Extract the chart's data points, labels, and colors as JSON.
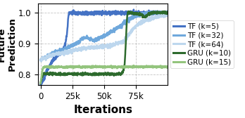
{
  "title": "",
  "xlabel": "Iterations",
  "ylabel": "Future\nPrediction",
  "xlim": [
    -2000,
    100000
  ],
  "ylim": [
    0.765,
    1.03
  ],
  "yticks": [
    0.8,
    0.9,
    1.0
  ],
  "xticks": [
    0,
    25000,
    50000,
    75000
  ],
  "xticklabels": [
    "0",
    "25k",
    "50k",
    "75k"
  ],
  "series": [
    {
      "label": "TF (k=5)",
      "color": "#4472C4",
      "linewidth": 1.8,
      "points": [
        [
          0,
          0.768
        ],
        [
          1000,
          0.772
        ],
        [
          2000,
          0.778
        ],
        [
          3000,
          0.79
        ],
        [
          4000,
          0.8
        ],
        [
          5000,
          0.81
        ],
        [
          6000,
          0.818
        ],
        [
          7000,
          0.825
        ],
        [
          8000,
          0.833
        ],
        [
          9000,
          0.84
        ],
        [
          10000,
          0.848
        ],
        [
          12000,
          0.855
        ],
        [
          14000,
          0.862
        ],
        [
          16000,
          0.87
        ],
        [
          18000,
          0.882
        ],
        [
          19000,
          0.895
        ],
        [
          20000,
          0.91
        ],
        [
          21000,
          0.94
        ],
        [
          21500,
          0.97
        ],
        [
          22000,
          0.995
        ],
        [
          22500,
          1.0
        ],
        [
          25000,
          1.0
        ],
        [
          30000,
          0.998
        ],
        [
          40000,
          0.999
        ],
        [
          50000,
          1.0
        ],
        [
          60000,
          0.999
        ],
        [
          70000,
          1.0
        ],
        [
          80000,
          0.999
        ],
        [
          90000,
          1.0
        ],
        [
          100000,
          1.0
        ]
      ]
    },
    {
      "label": "TF (k=32)",
      "color": "#6FA8DC",
      "linewidth": 1.8,
      "points": [
        [
          0,
          0.847
        ],
        [
          2000,
          0.851
        ],
        [
          4000,
          0.856
        ],
        [
          6000,
          0.86
        ],
        [
          8000,
          0.864
        ],
        [
          10000,
          0.868
        ],
        [
          12000,
          0.872
        ],
        [
          15000,
          0.876
        ],
        [
          18000,
          0.88
        ],
        [
          20000,
          0.884
        ],
        [
          22000,
          0.888
        ],
        [
          24000,
          0.892
        ],
        [
          26000,
          0.896
        ],
        [
          28000,
          0.9
        ],
        [
          30000,
          0.905
        ],
        [
          32000,
          0.912
        ],
        [
          34000,
          0.918
        ],
        [
          36000,
          0.92
        ],
        [
          38000,
          0.916
        ],
        [
          40000,
          0.912
        ],
        [
          42000,
          0.91
        ],
        [
          44000,
          0.912
        ],
        [
          46000,
          0.916
        ],
        [
          48000,
          0.92
        ],
        [
          50000,
          0.925
        ],
        [
          52000,
          0.93
        ],
        [
          55000,
          0.938
        ],
        [
          58000,
          0.945
        ],
        [
          62000,
          0.955
        ],
        [
          65000,
          0.965
        ],
        [
          68000,
          0.975
        ],
        [
          72000,
          0.985
        ],
        [
          76000,
          0.992
        ],
        [
          80000,
          0.996
        ],
        [
          85000,
          0.998
        ],
        [
          90000,
          0.999
        ],
        [
          95000,
          1.0
        ],
        [
          100000,
          1.0
        ]
      ]
    },
    {
      "label": "TF (k=64)",
      "color": "#BDD7EE",
      "linewidth": 1.8,
      "points": [
        [
          0,
          0.848
        ],
        [
          2000,
          0.851
        ],
        [
          4000,
          0.854
        ],
        [
          6000,
          0.857
        ],
        [
          8000,
          0.86
        ],
        [
          10000,
          0.863
        ],
        [
          12000,
          0.865
        ],
        [
          15000,
          0.867
        ],
        [
          18000,
          0.869
        ],
        [
          20000,
          0.871
        ],
        [
          22000,
          0.873
        ],
        [
          25000,
          0.876
        ],
        [
          28000,
          0.879
        ],
        [
          30000,
          0.881
        ],
        [
          33000,
          0.883
        ],
        [
          36000,
          0.885
        ],
        [
          40000,
          0.887
        ],
        [
          44000,
          0.888
        ],
        [
          48000,
          0.889
        ],
        [
          52000,
          0.891
        ],
        [
          55000,
          0.893
        ],
        [
          58000,
          0.897
        ],
        [
          62000,
          0.902
        ],
        [
          65000,
          0.908
        ],
        [
          67000,
          0.916
        ],
        [
          69000,
          0.926
        ],
        [
          71000,
          0.937
        ],
        [
          73000,
          0.948
        ],
        [
          75000,
          0.958
        ],
        [
          78000,
          0.966
        ],
        [
          81000,
          0.972
        ],
        [
          84000,
          0.977
        ],
        [
          87000,
          0.981
        ],
        [
          90000,
          0.985
        ],
        [
          93000,
          0.988
        ],
        [
          96000,
          0.991
        ],
        [
          100000,
          0.993
        ]
      ]
    },
    {
      "label": "GRU (k=10)",
      "color": "#2D6A2D",
      "linewidth": 1.8,
      "points": [
        [
          0,
          0.77
        ],
        [
          500,
          0.778
        ],
        [
          1000,
          0.788
        ],
        [
          1500,
          0.795
        ],
        [
          2000,
          0.8
        ],
        [
          3000,
          0.802
        ],
        [
          5000,
          0.801
        ],
        [
          10000,
          0.801
        ],
        [
          15000,
          0.8
        ],
        [
          20000,
          0.8
        ],
        [
          25000,
          0.801
        ],
        [
          30000,
          0.8
        ],
        [
          35000,
          0.801
        ],
        [
          40000,
          0.8
        ],
        [
          45000,
          0.8
        ],
        [
          50000,
          0.801
        ],
        [
          55000,
          0.8
        ],
        [
          60000,
          0.801
        ],
        [
          63000,
          0.8
        ],
        [
          64000,
          0.802
        ],
        [
          65000,
          0.81
        ],
        [
          66000,
          0.83
        ],
        [
          66500,
          0.86
        ],
        [
          67000,
          0.9
        ],
        [
          67500,
          0.95
        ],
        [
          68000,
          0.985
        ],
        [
          68500,
          1.0
        ],
        [
          70000,
          1.0
        ],
        [
          75000,
          0.998
        ],
        [
          78000,
          0.996
        ],
        [
          80000,
          0.99
        ],
        [
          82000,
          0.985
        ],
        [
          84000,
          0.992
        ],
        [
          86000,
          0.998
        ],
        [
          88000,
          1.0
        ],
        [
          90000,
          1.0
        ],
        [
          95000,
          1.0
        ],
        [
          100000,
          1.0
        ]
      ]
    },
    {
      "label": "GRU (k=15)",
      "color": "#93C47D",
      "linewidth": 1.8,
      "points": [
        [
          0,
          0.77
        ],
        [
          500,
          0.785
        ],
        [
          1000,
          0.8
        ],
        [
          1500,
          0.813
        ],
        [
          2000,
          0.82
        ],
        [
          3000,
          0.823
        ],
        [
          5000,
          0.824
        ],
        [
          10000,
          0.823
        ],
        [
          15000,
          0.824
        ],
        [
          20000,
          0.823
        ],
        [
          25000,
          0.824
        ],
        [
          30000,
          0.824
        ],
        [
          35000,
          0.823
        ],
        [
          40000,
          0.824
        ],
        [
          45000,
          0.824
        ],
        [
          50000,
          0.824
        ],
        [
          55000,
          0.824
        ],
        [
          60000,
          0.823
        ],
        [
          65000,
          0.824
        ],
        [
          70000,
          0.824
        ],
        [
          75000,
          0.824
        ],
        [
          80000,
          0.824
        ],
        [
          85000,
          0.824
        ],
        [
          90000,
          0.824
        ],
        [
          95000,
          0.824
        ],
        [
          100000,
          0.824
        ]
      ]
    }
  ],
  "grid_color": "#aaaaaa",
  "grid_linestyle": "--",
  "background_color": "#ffffff",
  "legend_fontsize": 7.5,
  "tick_fontsize": 8.5,
  "label_fontsize": 9.5
}
